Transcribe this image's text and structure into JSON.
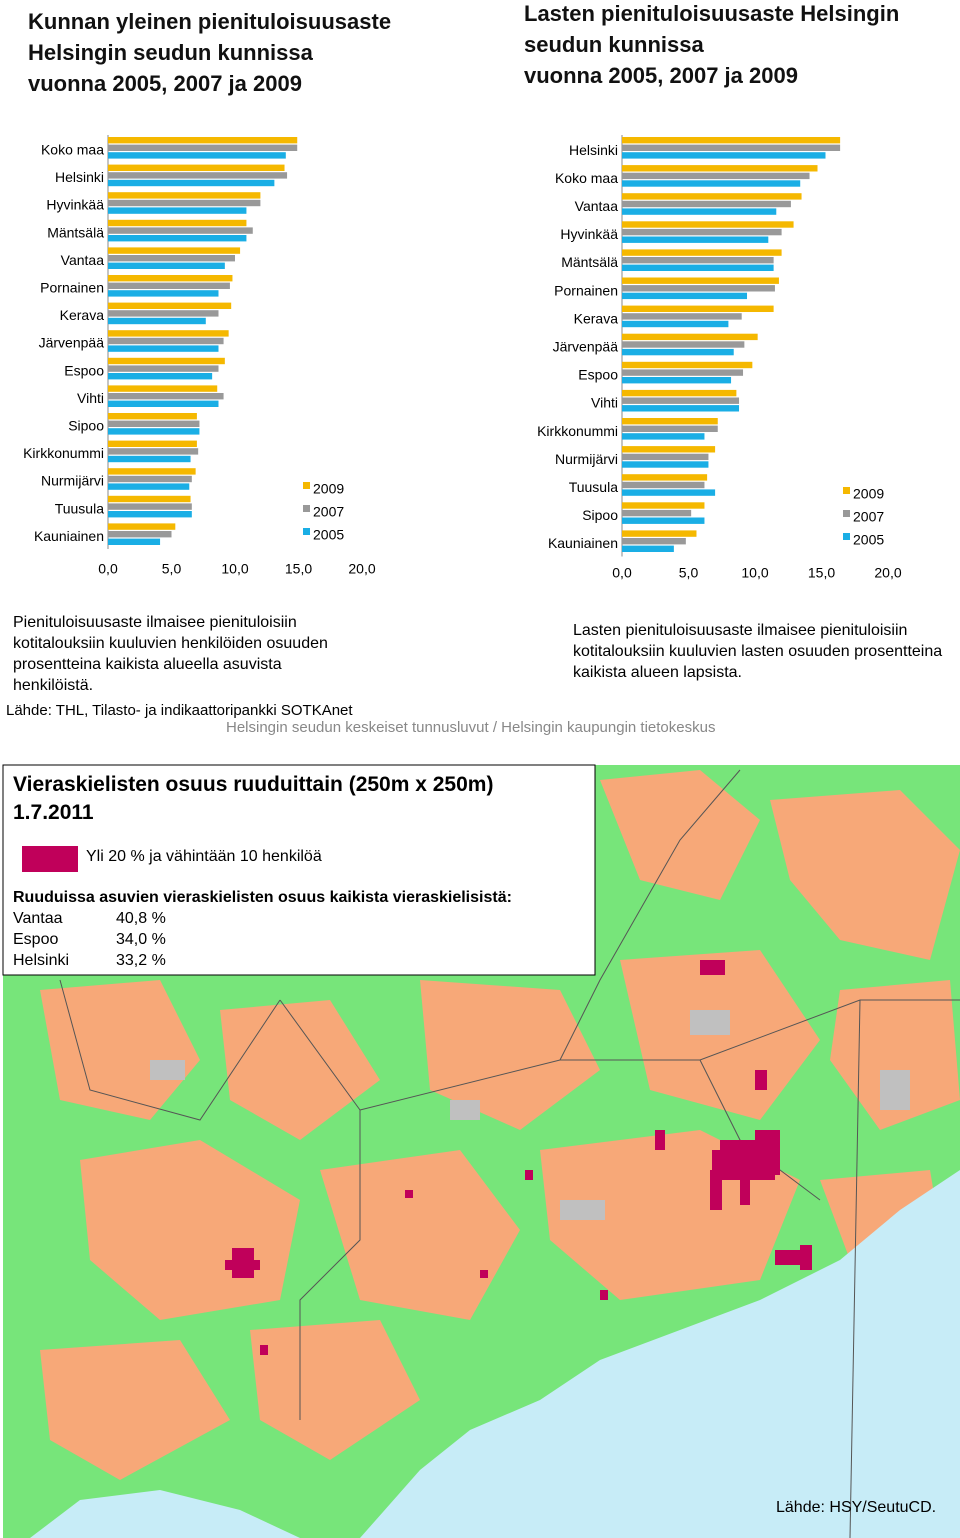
{
  "chart_data": [
    {
      "type": "bar",
      "orientation": "horizontal",
      "title": [
        "Kunnan yleinen pienituloisuusaste",
        "Helsingin seudun kunnissa",
        "vuonna 2005, 2007 ja 2009"
      ],
      "categories": [
        "Koko maa",
        "Helsinki",
        "Hyvinkää",
        "Mäntsälä",
        "Vantaa",
        "Pornainen",
        "Kerava",
        "Järvenpää",
        "Espoo",
        "Vihti",
        "Sipoo",
        "Kirkkonummi",
        "Nurmijärvi",
        "Tuusula",
        "Kauniainen"
      ],
      "series": [
        {
          "name": "2009",
          "color": "#f5b800",
          "values": [
            14.9,
            13.9,
            12.0,
            10.9,
            10.4,
            9.8,
            9.7,
            9.5,
            9.2,
            8.6,
            7.0,
            7.0,
            6.9,
            6.5,
            5.3
          ]
        },
        {
          "name": "2007",
          "color": "#999999",
          "values": [
            14.9,
            14.1,
            12.0,
            11.4,
            10.0,
            9.6,
            8.7,
            9.1,
            8.7,
            9.1,
            7.2,
            7.1,
            6.6,
            6.6,
            5.0
          ]
        },
        {
          "name": "2005",
          "color": "#1aaee5",
          "values": [
            14.0,
            13.1,
            10.9,
            10.9,
            9.2,
            8.7,
            7.7,
            8.7,
            8.2,
            8.7,
            7.2,
            6.5,
            6.4,
            6.6,
            4.1
          ]
        }
      ],
      "xlim": [
        0,
        20
      ],
      "xticks": [
        {
          "value": 0,
          "label": "0,0"
        },
        {
          "value": 5,
          "label": "5,0"
        },
        {
          "value": 10,
          "label": "10,0"
        },
        {
          "value": 15,
          "label": "15,0"
        },
        {
          "value": 20,
          "label": "20,0"
        }
      ],
      "legend": "lower right"
    },
    {
      "type": "bar",
      "orientation": "horizontal",
      "title": [
        "Lasten pienituloisuusaste Helsingin",
        "seudun kunnissa",
        "vuonna 2005, 2007 ja 2009"
      ],
      "categories": [
        "Helsinki",
        "Koko maa",
        "Vantaa",
        "Hyvinkää",
        "Mäntsälä",
        "Pornainen",
        "Kerava",
        "Järvenpää",
        "Espoo",
        "Vihti",
        "Kirkkonummi",
        "Nurmijärvi",
        "Tuusula",
        "Sipoo",
        "Kauniainen"
      ],
      "series": [
        {
          "name": "2009",
          "color": "#f5b800",
          "values": [
            16.4,
            14.7,
            13.5,
            12.9,
            12.0,
            11.8,
            11.4,
            10.2,
            9.8,
            8.6,
            7.2,
            7.0,
            6.4,
            6.2,
            5.6
          ]
        },
        {
          "name": "2007",
          "color": "#999999",
          "values": [
            16.4,
            14.1,
            12.7,
            12.0,
            11.4,
            11.5,
            9.0,
            9.2,
            9.1,
            8.8,
            7.2,
            6.5,
            6.2,
            5.2,
            4.8
          ]
        },
        {
          "name": "2005",
          "color": "#1aaee5",
          "values": [
            15.3,
            13.4,
            11.6,
            11.0,
            11.4,
            9.4,
            8.0,
            8.4,
            8.2,
            8.8,
            6.2,
            6.5,
            7.0,
            6.2,
            3.9
          ]
        }
      ],
      "xlim": [
        0,
        20
      ],
      "xticks": [
        {
          "value": 0,
          "label": "0,0"
        },
        {
          "value": 5,
          "label": "5,0"
        },
        {
          "value": 10,
          "label": "10,0"
        },
        {
          "value": 15,
          "label": "15,0"
        },
        {
          "value": 20,
          "label": "20,0"
        }
      ],
      "legend": "lower right"
    }
  ],
  "notes": {
    "left": "Pienituloisuusaste ilmaisee pienituloisiin kotitalouksiin kuuluvien henkilöiden osuuden prosentteina kaikista alueella asuvista henkilöistä.",
    "right": "Lasten pienituloisuusaste ilmaisee pienituloisiin kotitalouksiin kuuluvien lasten osuuden prosentteina kaikista alueen lapsista.",
    "source": "Lähde: THL, Tilasto- ja indikaattoripankki SOTKAnet",
    "credit": "Helsingin seudun keskeiset tunnusluvut / Helsingin kaupungin tietokeskus"
  },
  "map": {
    "title": [
      "Vieraskielisten osuus ruuduittain (250m x 250m)",
      "1.7.2011"
    ],
    "legend": "Yli 20 % ja vähintään 10 henkilöä",
    "table": {
      "title": "Ruuduissa asuvien vieraskielisten osuus kaikista vieraskielisistä:",
      "rows": [
        [
          "Vantaa",
          "40,8 %"
        ],
        [
          "Espoo",
          "34,0 %"
        ],
        [
          "Helsinki",
          "33,2 %"
        ]
      ]
    },
    "source": "Lähde: HSY/SeutuCD."
  }
}
